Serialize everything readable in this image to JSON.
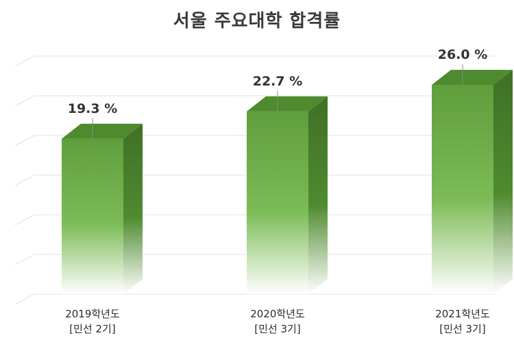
{
  "chart_data": {
    "type": "bar",
    "title": "서울 주요대학 합격률",
    "categories": [
      [
        "2019학년도",
        "[민선 2기]"
      ],
      [
        "2020학년도",
        "[민선 3기]"
      ],
      [
        "2021학년도",
        "[민선 3기]"
      ]
    ],
    "values": [
      19.3,
      22.7,
      26.0
    ],
    "value_labels": [
      "19.3 %",
      "22.7 %",
      "26.0 %"
    ],
    "ylim": [
      0,
      30
    ],
    "grid": true,
    "legend": "none",
    "colors": {
      "bar_front": "#6aa84a",
      "bar_top": "#4e8a2e",
      "bar_side": "#44782a",
      "grid": "#e2e2e2"
    }
  }
}
